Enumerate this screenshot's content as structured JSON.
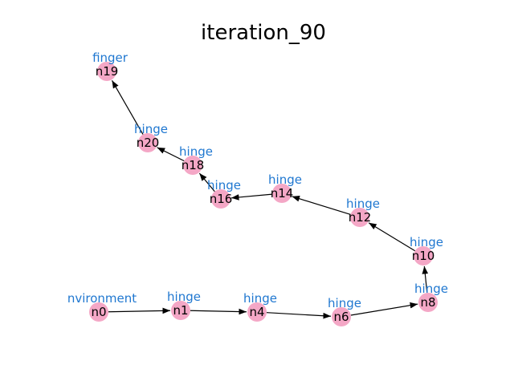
{
  "title": "iteration_90",
  "colors": {
    "node_fill": "#f4a7c6",
    "edge": "#000000",
    "type_label": "#1f77d0"
  },
  "nodes": [
    {
      "id": "n0",
      "label": "n0",
      "type_label": "nvironment"
    },
    {
      "id": "n1",
      "label": "n1",
      "type_label": "hinge"
    },
    {
      "id": "n4",
      "label": "n4",
      "type_label": "hinge"
    },
    {
      "id": "n6",
      "label": "n6",
      "type_label": "hinge"
    },
    {
      "id": "n8",
      "label": "n8",
      "type_label": "hinge"
    },
    {
      "id": "n10",
      "label": "n10",
      "type_label": "hinge"
    },
    {
      "id": "n12",
      "label": "n12",
      "type_label": "hinge"
    },
    {
      "id": "n14",
      "label": "n14",
      "type_label": "hinge"
    },
    {
      "id": "n16",
      "label": "n16",
      "type_label": "hinge"
    },
    {
      "id": "n18",
      "label": "n18",
      "type_label": "hinge"
    },
    {
      "id": "n20",
      "label": "n20",
      "type_label": "hinge"
    },
    {
      "id": "n19",
      "label": "n19",
      "type_label": "finger"
    }
  ],
  "edges": [
    {
      "from": "n0",
      "to": "n1"
    },
    {
      "from": "n1",
      "to": "n4"
    },
    {
      "from": "n4",
      "to": "n6"
    },
    {
      "from": "n6",
      "to": "n8"
    },
    {
      "from": "n8",
      "to": "n10"
    },
    {
      "from": "n10",
      "to": "n12"
    },
    {
      "from": "n12",
      "to": "n14"
    },
    {
      "from": "n14",
      "to": "n16"
    },
    {
      "from": "n16",
      "to": "n18"
    },
    {
      "from": "n18",
      "to": "n20"
    },
    {
      "from": "n20",
      "to": "n19"
    }
  ]
}
